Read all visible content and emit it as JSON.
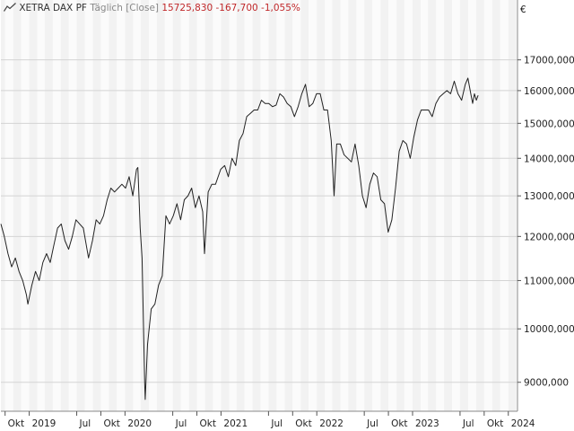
{
  "header": {
    "icon": "line-chart-icon",
    "instrument": "XETRA DAX PF",
    "interval": "Täglich [Close]",
    "last_value": "15725,830",
    "change_abs": "-167,700",
    "change_pct": "-1,055%",
    "change_color": "#c0282a"
  },
  "currency_label": "€",
  "chart_data": {
    "type": "line",
    "title": "XETRA DAX PF",
    "xlabel": "",
    "ylabel": "",
    "y_scale": "log",
    "ylim": [
      8500,
      18400
    ],
    "xlim": [
      "2018-09-15",
      "2024-02-05"
    ],
    "grid": true,
    "legend": "none",
    "line_color": "#222222",
    "y_ticks": [
      {
        "value": 9000,
        "label": "9000,000"
      },
      {
        "value": 10000,
        "label": "10000,000"
      },
      {
        "value": 11000,
        "label": "11000,000"
      },
      {
        "value": 12000,
        "label": "12000,000"
      },
      {
        "value": 13000,
        "label": "13000,000"
      },
      {
        "value": 14000,
        "label": "14000,000"
      },
      {
        "value": 15000,
        "label": "15000,000"
      },
      {
        "value": 16000,
        "label": "16000,000"
      },
      {
        "value": 17000,
        "label": "17000,000"
      }
    ],
    "x_ticks": [
      {
        "date": "2018-10-01",
        "label": "Okt"
      },
      {
        "date": "2019-01-01",
        "label": "2019"
      },
      {
        "date": "2019-07-01",
        "label": "Jul"
      },
      {
        "date": "2019-10-01",
        "label": "Okt"
      },
      {
        "date": "2020-01-01",
        "label": "2020"
      },
      {
        "date": "2020-07-01",
        "label": "Jul"
      },
      {
        "date": "2020-10-01",
        "label": "Okt"
      },
      {
        "date": "2021-01-01",
        "label": "2021"
      },
      {
        "date": "2021-07-01",
        "label": "Jul"
      },
      {
        "date": "2021-10-01",
        "label": "Okt"
      },
      {
        "date": "2022-01-01",
        "label": "2022"
      },
      {
        "date": "2022-07-01",
        "label": "Jul"
      },
      {
        "date": "2022-10-01",
        "label": "Okt"
      },
      {
        "date": "2023-01-01",
        "label": "2023"
      },
      {
        "date": "2023-07-01",
        "label": "Jul"
      },
      {
        "date": "2023-10-01",
        "label": "Okt"
      },
      {
        "date": "2024-01-01",
        "label": "2024"
      }
    ],
    "series": [
      {
        "x": [
          "2018-09-15",
          "2018-09-28",
          "2018-10-12",
          "2018-10-26",
          "2018-11-09",
          "2018-11-23",
          "2018-12-07",
          "2018-12-21",
          "2018-12-27",
          "2019-01-11",
          "2019-01-25",
          "2019-02-08",
          "2019-02-22",
          "2019-03-08",
          "2019-03-22",
          "2019-04-05",
          "2019-04-19",
          "2019-05-03",
          "2019-05-17",
          "2019-05-31",
          "2019-06-14",
          "2019-06-28",
          "2019-07-12",
          "2019-07-26",
          "2019-08-09",
          "2019-08-15",
          "2019-08-30",
          "2019-09-13",
          "2019-09-27",
          "2019-10-11",
          "2019-10-25",
          "2019-11-08",
          "2019-11-22",
          "2019-12-06",
          "2019-12-20",
          "2020-01-03",
          "2020-01-17",
          "2020-01-31",
          "2020-02-14",
          "2020-02-19",
          "2020-02-28",
          "2020-03-06",
          "2020-03-16",
          "2020-03-18",
          "2020-03-27",
          "2020-04-10",
          "2020-04-24",
          "2020-05-08",
          "2020-05-22",
          "2020-06-05",
          "2020-06-19",
          "2020-07-03",
          "2020-07-17",
          "2020-07-31",
          "2020-08-14",
          "2020-08-28",
          "2020-09-11",
          "2020-09-25",
          "2020-10-09",
          "2020-10-23",
          "2020-10-30",
          "2020-11-13",
          "2020-11-27",
          "2020-12-11",
          "2020-12-31",
          "2021-01-15",
          "2021-01-29",
          "2021-02-12",
          "2021-02-26",
          "2021-03-12",
          "2021-03-26",
          "2021-04-09",
          "2021-04-23",
          "2021-05-07",
          "2021-05-21",
          "2021-06-04",
          "2021-06-18",
          "2021-07-02",
          "2021-07-16",
          "2021-07-30",
          "2021-08-13",
          "2021-08-27",
          "2021-09-10",
          "2021-09-24",
          "2021-10-08",
          "2021-10-22",
          "2021-11-05",
          "2021-11-19",
          "2021-12-03",
          "2021-12-17",
          "2021-12-31",
          "2022-01-14",
          "2022-01-28",
          "2022-02-11",
          "2022-02-25",
          "2022-03-08",
          "2022-03-18",
          "2022-04-01",
          "2022-04-15",
          "2022-04-29",
          "2022-05-13",
          "2022-05-27",
          "2022-06-10",
          "2022-06-24",
          "2022-07-08",
          "2022-07-22",
          "2022-08-05",
          "2022-08-19",
          "2022-09-02",
          "2022-09-16",
          "2022-09-30",
          "2022-10-14",
          "2022-10-28",
          "2022-11-11",
          "2022-11-25",
          "2022-12-09",
          "2022-12-23",
          "2023-01-06",
          "2023-01-20",
          "2023-02-03",
          "2023-02-17",
          "2023-03-03",
          "2023-03-17",
          "2023-03-31",
          "2023-04-14",
          "2023-04-28",
          "2023-05-12",
          "2023-05-26",
          "2023-06-09",
          "2023-06-23",
          "2023-07-07",
          "2023-07-21",
          "2023-07-31",
          "2023-08-11",
          "2023-08-18",
          "2023-08-25",
          "2023-09-01",
          "2023-09-08"
        ],
        "y": [
          12300,
          12000,
          11600,
          11300,
          11500,
          11200,
          11000,
          10700,
          10500,
          10900,
          11200,
          11000,
          11400,
          11600,
          11400,
          11800,
          12200,
          12300,
          11900,
          11700,
          12000,
          12400,
          12300,
          12200,
          11700,
          11500,
          11900,
          12400,
          12300,
          12500,
          12900,
          13200,
          13100,
          13200,
          13300,
          13200,
          13500,
          13000,
          13700,
          13750,
          12200,
          11500,
          9000,
          8700,
          9700,
          10400,
          10500,
          10900,
          11100,
          12500,
          12300,
          12500,
          12800,
          12400,
          12900,
          13000,
          13200,
          12700,
          13000,
          12600,
          11600,
          13100,
          13300,
          13300,
          13700,
          13800,
          13500,
          14000,
          13800,
          14500,
          14700,
          15200,
          15300,
          15400,
          15400,
          15700,
          15600,
          15600,
          15500,
          15550,
          15900,
          15800,
          15600,
          15500,
          15200,
          15500,
          15900,
          16200,
          15500,
          15600,
          15900,
          15900,
          15400,
          15400,
          14500,
          13000,
          14400,
          14400,
          14100,
          14000,
          13900,
          14400,
          13800,
          13000,
          12700,
          13300,
          13600,
          13500,
          12900,
          12800,
          12100,
          12400,
          13200,
          14200,
          14500,
          14400,
          14000,
          14600,
          15100,
          15400,
          15400,
          15400,
          15200,
          15600,
          15800,
          15900,
          16000,
          15900,
          16300,
          15900,
          15700,
          16200,
          16400,
          15900,
          15600,
          15900,
          15700,
          15850
        ]
      }
    ]
  }
}
